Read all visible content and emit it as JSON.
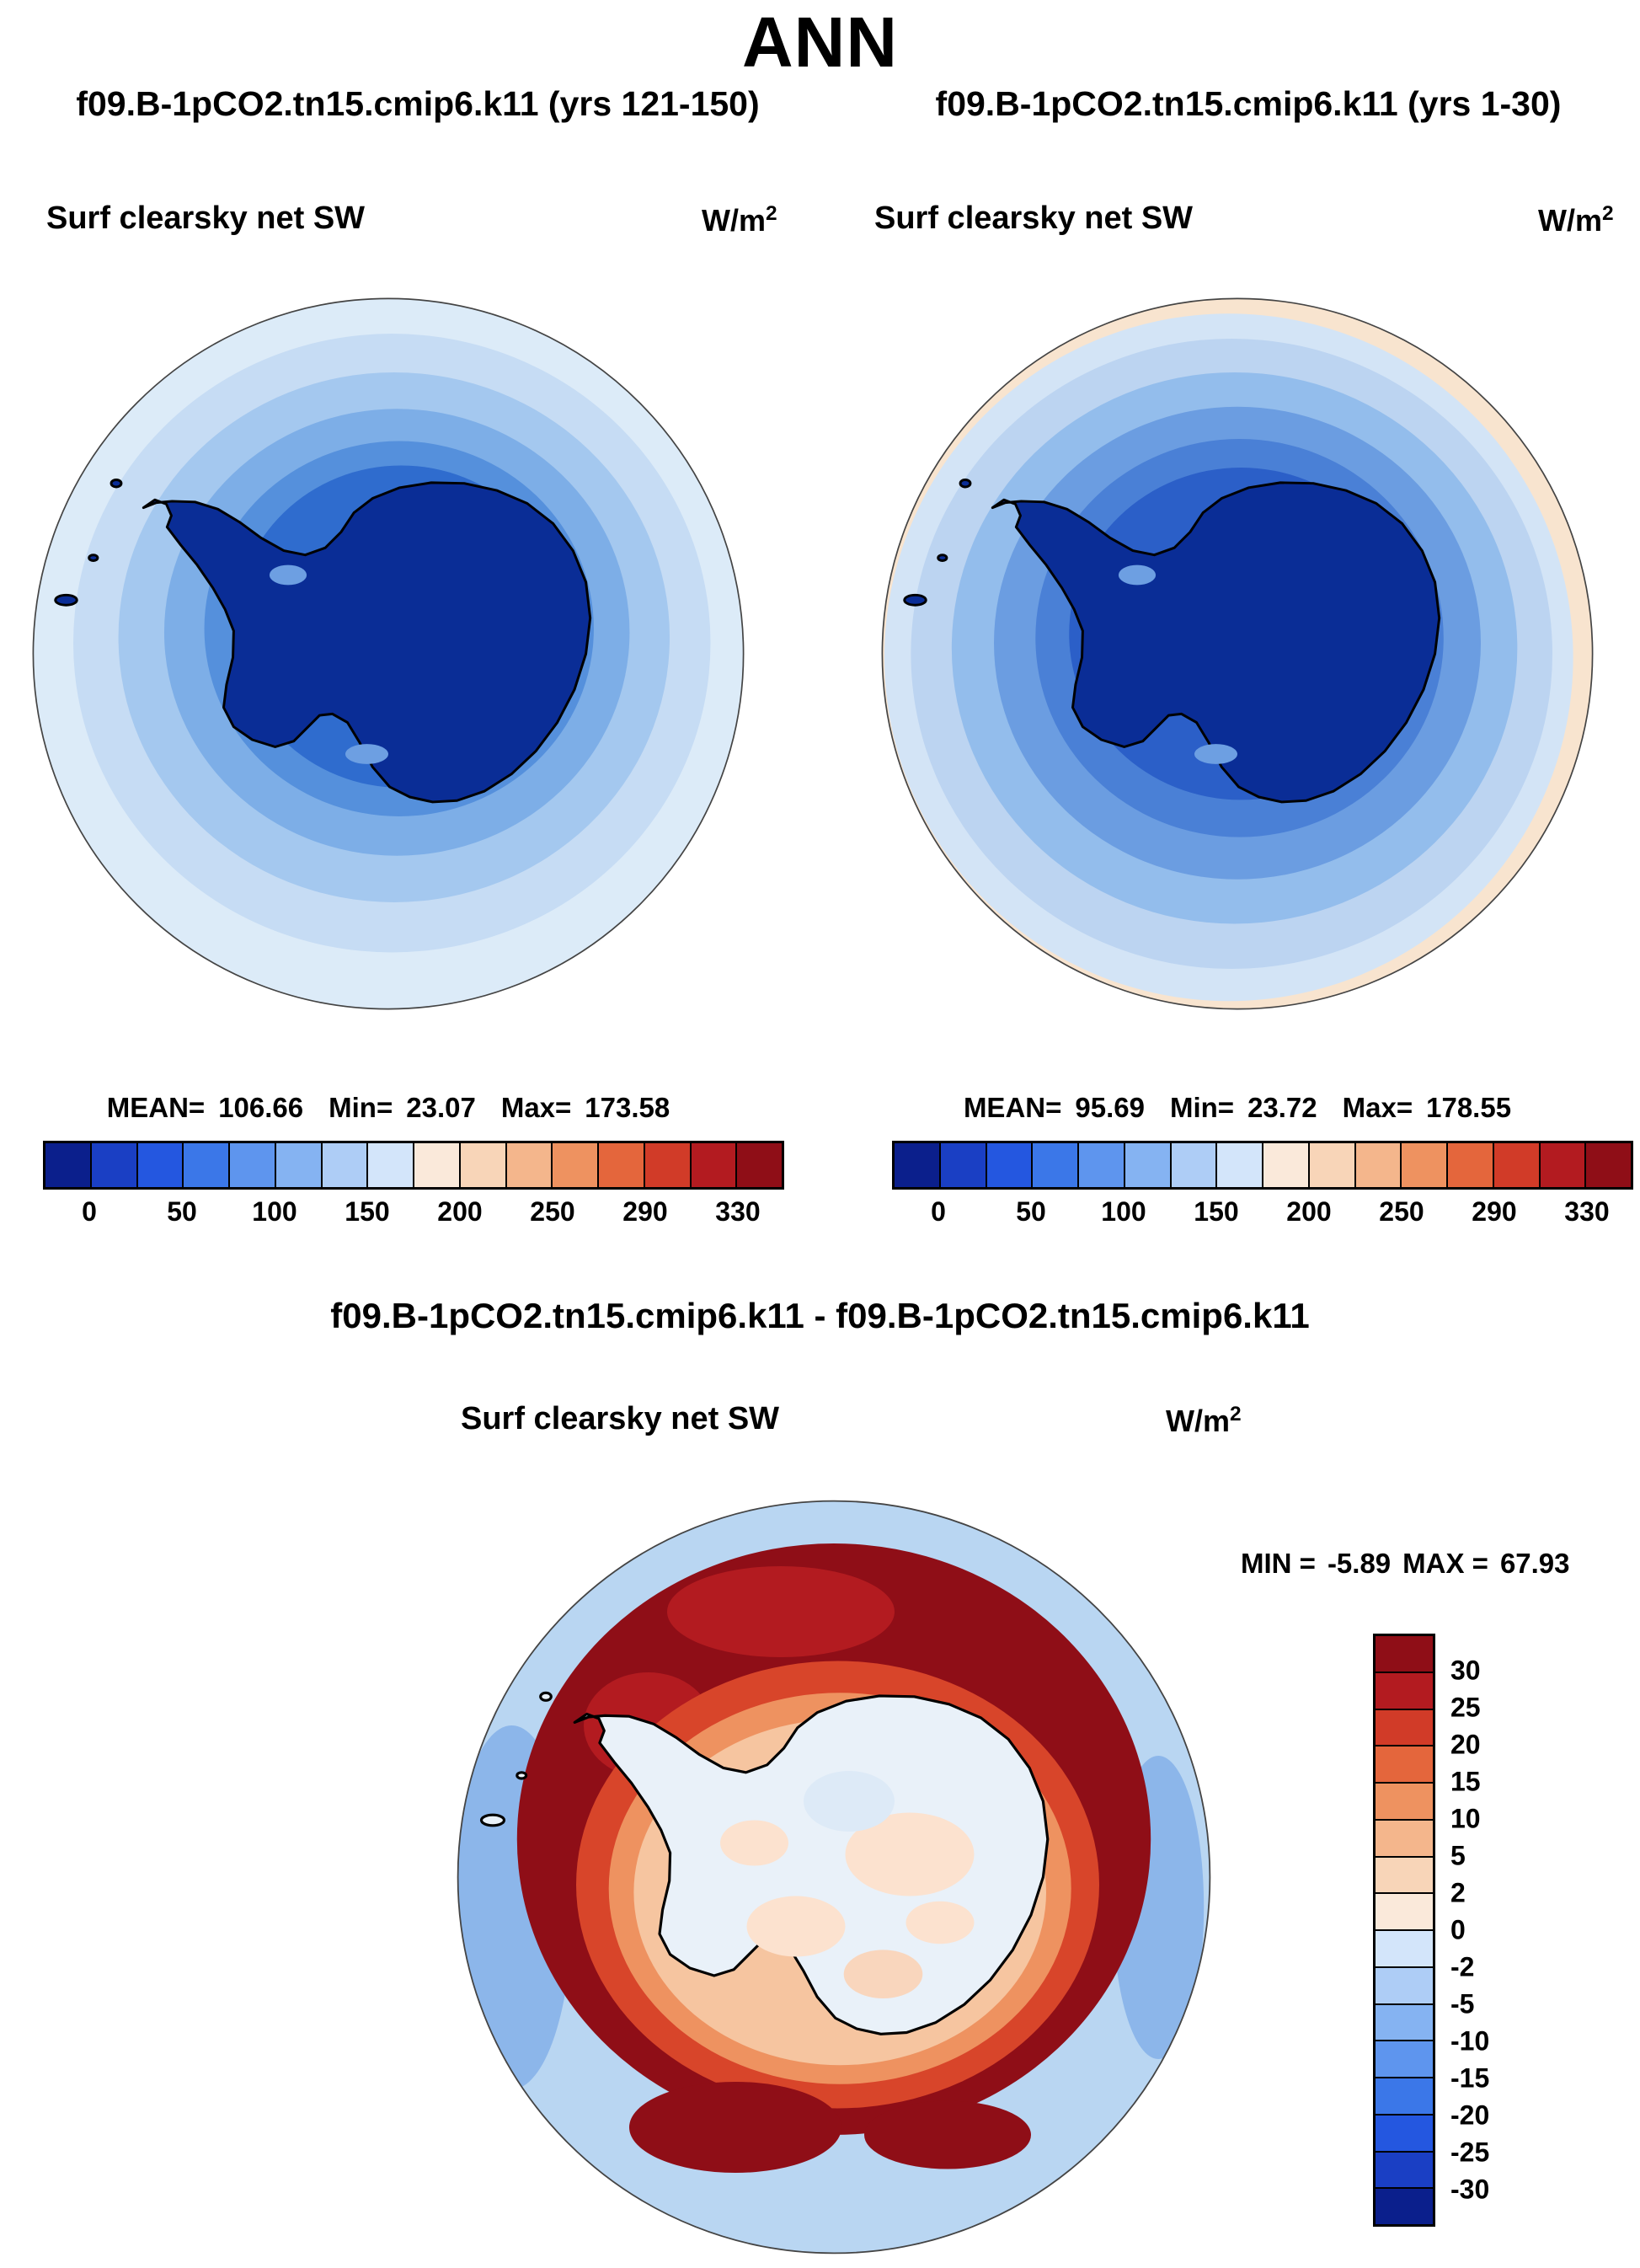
{
  "title": "ANN",
  "units": {
    "base": "W/m",
    "exp": "2"
  },
  "cbar_colors": [
    "#0b1f8c",
    "#1a3fc4",
    "#2457e0",
    "#3b77e8",
    "#5e95ee",
    "#85b3f2",
    "#aecdf6",
    "#d3e5fa",
    "#fae9da",
    "#f8d5b8",
    "#f4b68c",
    "#ee9260",
    "#e4663c",
    "#d13b28",
    "#b31b20",
    "#8f0e17"
  ],
  "diff_cbar_colors": [
    "#8f0e17",
    "#b31b20",
    "#d13b28",
    "#e4663c",
    "#ee9260",
    "#f4b68c",
    "#f8d5b8",
    "#fae9da",
    "#d3e5fa",
    "#aecdf6",
    "#85b3f2",
    "#5e95ee",
    "#3b77e8",
    "#2457e0",
    "#1a3fc4",
    "#0b1f8c"
  ],
  "panels": [
    {
      "case_title": "f09.B-1pCO2.tn15.cmip6.k11 (yrs 121-150)",
      "variable": "Surf clearsky net SW",
      "stats": {
        "mean_label": "MEAN=",
        "mean": "106.66",
        "min_label": "Min=",
        "min": "23.07",
        "max_label": "Max=",
        "max": "173.58"
      },
      "ticks": [
        "0",
        "50",
        "100",
        "150",
        "200",
        "250",
        "290",
        "330"
      ]
    },
    {
      "case_title": "f09.B-1pCO2.tn15.cmip6.k11 (yrs 1-30)",
      "variable": "Surf clearsky net SW",
      "stats": {
        "mean_label": "MEAN=",
        "mean": "95.69",
        "min_label": "Min=",
        "min": "23.72",
        "max_label": "Max=",
        "max": "178.55"
      },
      "ticks": [
        "0",
        "50",
        "100",
        "150",
        "200",
        "250",
        "290",
        "330"
      ]
    }
  ],
  "diff": {
    "title": "f09.B-1pCO2.tn15.cmip6.k11 - f09.B-1pCO2.tn15.cmip6.k11",
    "variable": "Surf clearsky net SW",
    "minmax": {
      "min_label": "MIN =",
      "min": "-5.89",
      "max_label": "MAX =",
      "max": "67.93"
    },
    "ticks": [
      "30",
      "25",
      "20",
      "15",
      "10",
      "5",
      "2",
      "0",
      "-2",
      "-5",
      "-10",
      "-15",
      "-20",
      "-25",
      "-30"
    ]
  },
  "chart_data": [
    {
      "type": "heatmap",
      "subtype": "south-polar-stereographic-contour-map",
      "title": "f09.B-1pCO2.tn15.cmip6.k11 (yrs 121-150)",
      "season": "ANN",
      "variable": "Surf clearsky net SW",
      "units": "W/m^2",
      "stats": {
        "mean": 106.66,
        "min": 23.07,
        "max": 173.58
      },
      "contour_levels": [
        0,
        25,
        50,
        75,
        100,
        125,
        150,
        175,
        200,
        225,
        250,
        270,
        290,
        310,
        330
      ],
      "tick_labels": [
        0,
        50,
        100,
        150,
        200,
        250,
        290,
        330
      ],
      "palette": [
        "#0b1f8c",
        "#1a3fc4",
        "#2457e0",
        "#3b77e8",
        "#5e95ee",
        "#85b3f2",
        "#aecdf6",
        "#d3e5fa",
        "#fae9da",
        "#f8d5b8",
        "#f4b68c",
        "#ee9260",
        "#e4663c",
        "#d13b28",
        "#b31b20",
        "#8f0e17"
      ],
      "legend_position": "bottom",
      "notes": "Antarctica continent shows lowest values (dark blue); values increase toward the map edge"
    },
    {
      "type": "heatmap",
      "subtype": "south-polar-stereographic-contour-map",
      "title": "f09.B-1pCO2.tn15.cmip6.k11 (yrs 1-30)",
      "season": "ANN",
      "variable": "Surf clearsky net SW",
      "units": "W/m^2",
      "stats": {
        "mean": 95.69,
        "min": 23.72,
        "max": 178.55
      },
      "contour_levels": [
        0,
        25,
        50,
        75,
        100,
        125,
        150,
        175,
        200,
        225,
        250,
        270,
        290,
        310,
        330
      ],
      "tick_labels": [
        0,
        50,
        100,
        150,
        200,
        250,
        290,
        330
      ],
      "palette": [
        "#0b1f8c",
        "#1a3fc4",
        "#2457e0",
        "#3b77e8",
        "#5e95ee",
        "#85b3f2",
        "#aecdf6",
        "#d3e5fa",
        "#fae9da",
        "#f8d5b8",
        "#f4b68c",
        "#ee9260",
        "#e4663c",
        "#d13b28",
        "#b31b20",
        "#8f0e17"
      ],
      "legend_position": "bottom",
      "notes": "Similar pattern to left panel but darker blues (lower mean) and a pale warm rim at the outer edge"
    },
    {
      "type": "heatmap",
      "subtype": "south-polar-stereographic-contour-map-difference",
      "title": "f09.B-1pCO2.tn15.cmip6.k11 - f09.B-1pCO2.tn15.cmip6.k11",
      "season": "ANN",
      "variable": "Surf clearsky net SW",
      "units": "W/m^2",
      "stats": {
        "min": -5.89,
        "max": 67.93
      },
      "contour_levels": [
        -30,
        -25,
        -20,
        -15,
        -10,
        -5,
        -2,
        0,
        2,
        5,
        10,
        15,
        20,
        25,
        30
      ],
      "tick_labels": [
        30,
        25,
        20,
        15,
        10,
        5,
        2,
        0,
        -2,
        -5,
        -10,
        -15,
        -20,
        -25,
        -30
      ],
      "palette_top_to_bottom": [
        "#8f0e17",
        "#b31b20",
        "#d13b28",
        "#e4663c",
        "#ee9260",
        "#f4b68c",
        "#f8d5b8",
        "#fae9da",
        "#d3e5fa",
        "#aecdf6",
        "#85b3f2",
        "#5e95ee",
        "#3b77e8",
        "#2457e0",
        "#1a3fc4",
        "#0b1f8c"
      ],
      "legend_position": "right",
      "notes": "Strong positive differences (dark red, >30) in a ring over the ocean around Antarctica; near-zero pale values over the continent; slightly negative (light blue) toward the outer edge"
    }
  ]
}
